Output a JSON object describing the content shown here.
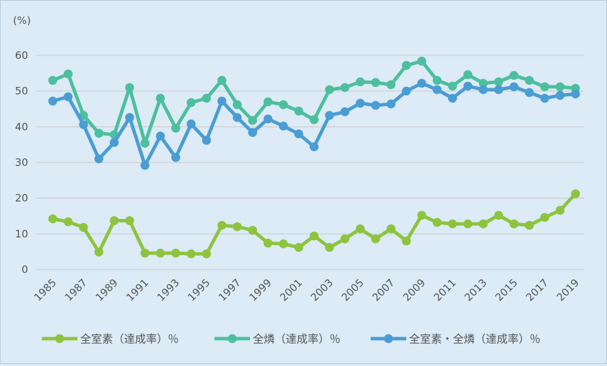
{
  "chart_data": {
    "type": "line",
    "title": "",
    "ylabel": "(%)",
    "xlabel": "",
    "ylim": [
      0,
      60
    ],
    "yticks": [
      0,
      10,
      20,
      30,
      40,
      50,
      60
    ],
    "grid": true,
    "legend_position": "bottom",
    "x": [
      1985,
      1986,
      1987,
      1988,
      1989,
      1990,
      1991,
      1992,
      1993,
      1994,
      1995,
      1996,
      1997,
      1998,
      1999,
      2000,
      2001,
      2002,
      2003,
      2004,
      2005,
      2006,
      2007,
      2008,
      2009,
      2010,
      2011,
      2012,
      2013,
      2014,
      2015,
      2016,
      2017,
      2018,
      2019
    ],
    "xtick_labels": [
      "1985",
      "1987",
      "1989",
      "1991",
      "1993",
      "1995",
      "1997",
      "1999",
      "2001",
      "2003",
      "2005",
      "2007",
      "2009",
      "2011",
      "2013",
      "2015",
      "2017",
      "2019"
    ],
    "series": [
      {
        "name": "全室素（達成率）％",
        "color": "#8dc43f",
        "values": [
          14.2,
          13.4,
          11.8,
          4.9,
          13.7,
          13.7,
          4.6,
          4.6,
          4.6,
          4.4,
          4.4,
          12.4,
          12.0,
          11.0,
          7.4,
          7.2,
          6.2,
          9.4,
          6.2,
          8.6,
          11.4,
          8.6,
          11.4,
          8.0,
          15.2,
          13.2,
          12.8,
          12.8,
          12.8,
          15.2,
          12.8,
          12.4,
          14.6,
          16.6,
          21.2
        ]
      },
      {
        "name": "全燐（達成率）％",
        "color": "#4dbf9e",
        "values": [
          53.0,
          54.8,
          43.2,
          38.2,
          37.8,
          51.0,
          35.4,
          48.0,
          39.6,
          46.8,
          48.0,
          53.0,
          46.2,
          41.8,
          47.0,
          46.2,
          44.4,
          42.0,
          50.4,
          51.0,
          52.6,
          52.4,
          51.8,
          57.2,
          58.4,
          53.0,
          51.4,
          54.6,
          52.2,
          52.6,
          54.4,
          53.0,
          51.2,
          51.2,
          50.8
        ]
      },
      {
        "name": "全室素・全燐（達成率）％",
        "color": "#4a9dd3",
        "values": [
          47.2,
          48.4,
          40.6,
          31.0,
          35.6,
          42.6,
          29.2,
          37.4,
          31.4,
          40.8,
          36.2,
          47.2,
          42.6,
          38.4,
          42.2,
          40.2,
          38.0,
          34.4,
          43.2,
          44.2,
          46.6,
          46.0,
          46.4,
          50.0,
          52.2,
          50.4,
          48.0,
          51.4,
          50.4,
          50.4,
          51.2,
          49.6,
          48.0,
          48.8,
          49.2
        ]
      }
    ]
  }
}
